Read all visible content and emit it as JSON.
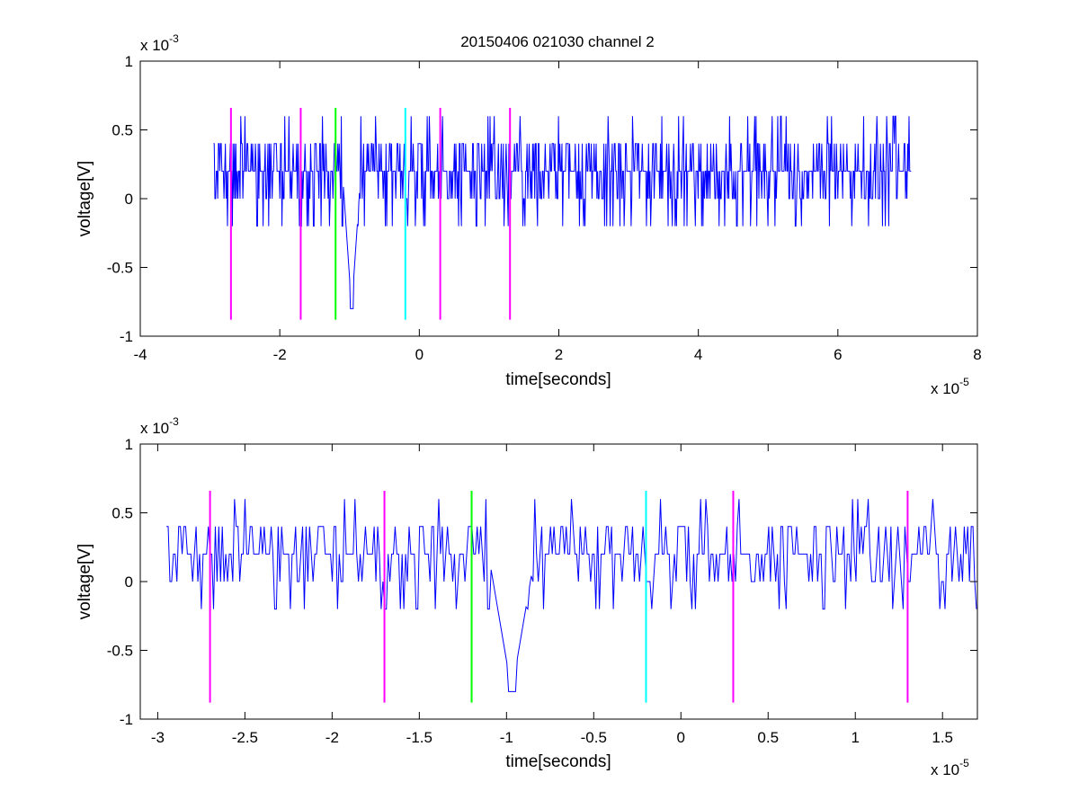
{
  "figure_title": "20150406 021030 channel 2",
  "chart_data": [
    {
      "type": "line",
      "title": "20150406 021030 channel 2",
      "xlabel": "time[seconds]",
      "ylabel": "voltage[V]",
      "x_multiplier_label": "x 10",
      "x_multiplier_exponent": "-5",
      "y_multiplier_label": "x 10",
      "y_multiplier_exponent": "-3",
      "xlim": [
        -4e-05,
        8e-05
      ],
      "ylim": [
        -0.001,
        0.001
      ],
      "x_ticks": [
        -4e-05,
        -2e-05,
        0,
        2e-05,
        4e-05,
        6e-05,
        8e-05
      ],
      "x_tick_labels": [
        "-4",
        "-2",
        "0",
        "2",
        "4",
        "6",
        "8"
      ],
      "y_ticks": [
        -0.001,
        -0.0005,
        0,
        0.0005,
        0.001
      ],
      "y_tick_labels": [
        "-1",
        "-0.5",
        "0",
        "0.5",
        "1"
      ],
      "grid": false,
      "signal": {
        "color": "#0000ff",
        "x_range": [
          -2.95e-05,
          7.05e-05
        ],
        "sample_count": 1000,
        "levels": [
          -0.0008,
          -0.0002,
          0,
          0.0002,
          0.0004,
          0.0006
        ],
        "dip": {
          "x": -9.7e-06,
          "y": -0.0008
        }
      },
      "markers": [
        {
          "x": -2.7e-05,
          "color": "#ff00ff",
          "ymin": -0.00088,
          "ymax": 0.00066
        },
        {
          "x": -1.7e-05,
          "color": "#ff00ff",
          "ymin": -0.00088,
          "ymax": 0.00066
        },
        {
          "x": -1.2e-05,
          "color": "#00ff00",
          "ymin": -0.00088,
          "ymax": 0.00066
        },
        {
          "x": -2e-06,
          "color": "#00ffff",
          "ymin": -0.00088,
          "ymax": 0.00066
        },
        {
          "x": 3e-06,
          "color": "#ff00ff",
          "ymin": -0.00088,
          "ymax": 0.00066
        },
        {
          "x": 1.3e-05,
          "color": "#ff00ff",
          "ymin": -0.00088,
          "ymax": 0.00066
        }
      ]
    },
    {
      "type": "line",
      "title": "",
      "xlabel": "time[seconds]",
      "ylabel": "voltage[V]",
      "x_multiplier_label": "x 10",
      "x_multiplier_exponent": "-5",
      "y_multiplier_label": "x 10",
      "y_multiplier_exponent": "-3",
      "xlim": [
        -3.1e-05,
        1.7e-05
      ],
      "ylim": [
        -0.001,
        0.001
      ],
      "x_ticks": [
        -3e-05,
        -2.5e-05,
        -2e-05,
        -1.5e-05,
        -1e-05,
        -5e-06,
        0,
        5e-06,
        1e-05,
        1.5e-05
      ],
      "x_tick_labels": [
        "-3",
        "-2.5",
        "-2",
        "-1.5",
        "-1",
        "-0.5",
        "0",
        "0.5",
        "1",
        "1.5"
      ],
      "y_ticks": [
        -0.001,
        -0.0005,
        0,
        0.0005,
        0.001
      ],
      "y_tick_labels": [
        "-1",
        "-0.5",
        "0",
        "0.5",
        "1"
      ],
      "grid": false,
      "signal": {
        "color": "#0000ff",
        "x_range": [
          -2.95e-05,
          1.7e-05
        ],
        "sample_count": 465,
        "levels": [
          -0.0008,
          -0.0002,
          0,
          0.0002,
          0.0004,
          0.0006
        ],
        "dip": {
          "x": -9.7e-06,
          "y": -0.0008
        }
      },
      "markers": [
        {
          "x": -2.7e-05,
          "color": "#ff00ff",
          "ymin": -0.00088,
          "ymax": 0.00066
        },
        {
          "x": -1.7e-05,
          "color": "#ff00ff",
          "ymin": -0.00088,
          "ymax": 0.00066
        },
        {
          "x": -1.2e-05,
          "color": "#00ff00",
          "ymin": -0.00088,
          "ymax": 0.00066
        },
        {
          "x": -2e-06,
          "color": "#00ffff",
          "ymin": -0.00088,
          "ymax": 0.00066
        },
        {
          "x": 3e-06,
          "color": "#ff00ff",
          "ymin": -0.00088,
          "ymax": 0.00066
        },
        {
          "x": 1.3e-05,
          "color": "#ff00ff",
          "ymin": -0.00088,
          "ymax": 0.00066
        }
      ]
    }
  ]
}
